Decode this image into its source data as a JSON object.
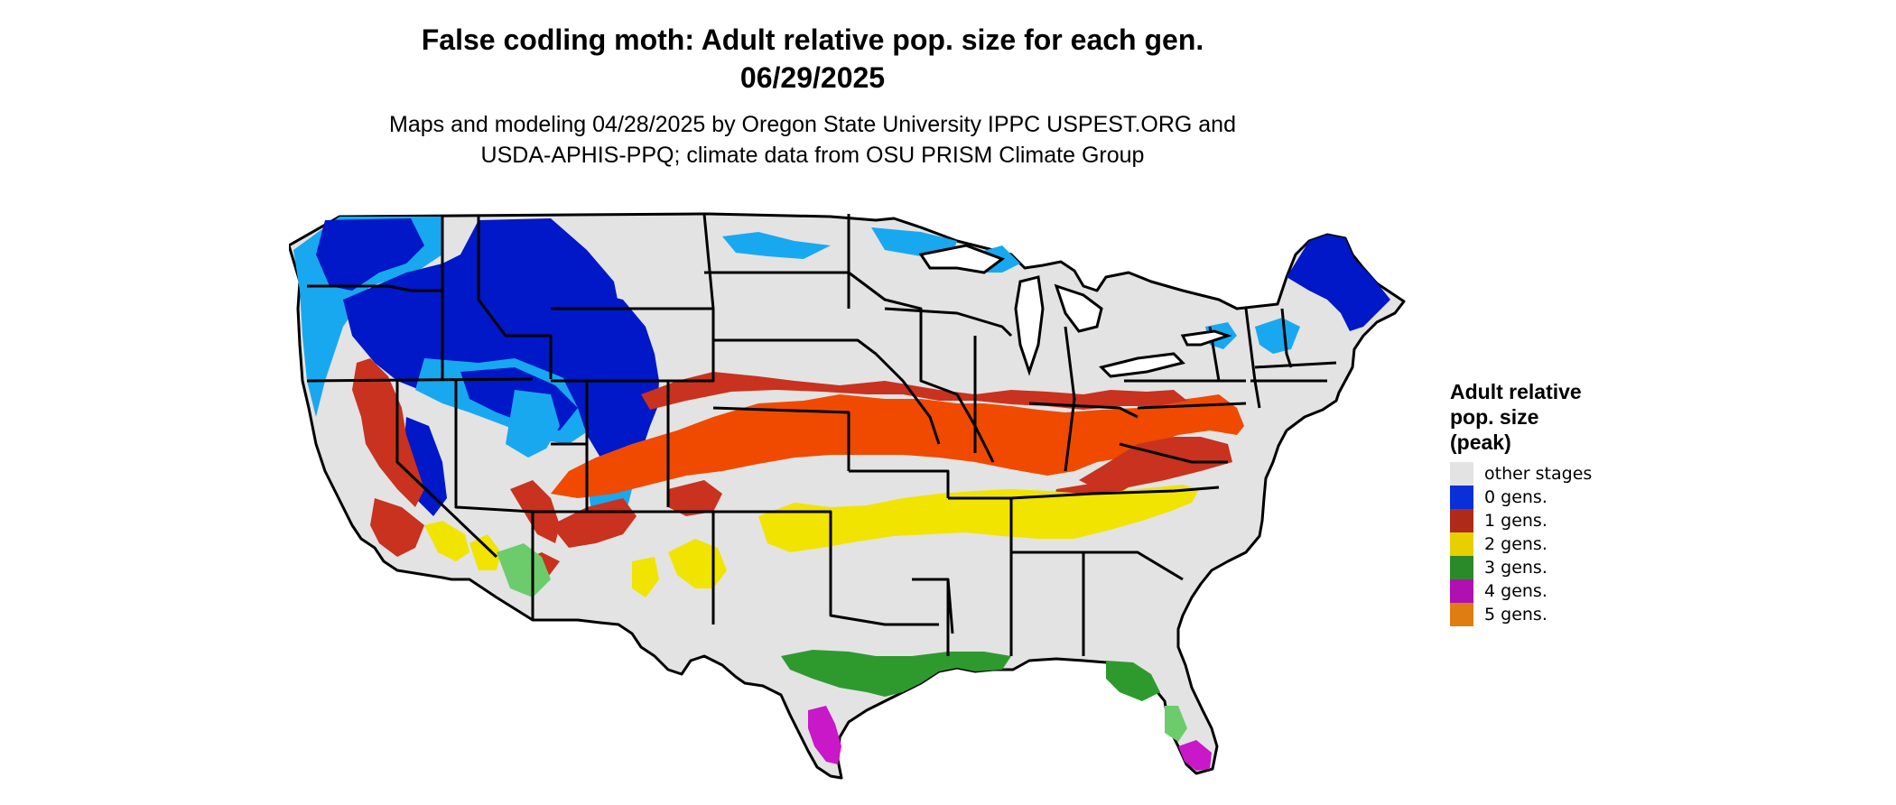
{
  "title_line1": "False codling moth: Adult relative pop. size for each gen.",
  "title_line2": "06/29/2025",
  "subtitle_line1": "Maps and modeling 04/28/2025 by Oregon State University IPPC USPEST.ORG and",
  "subtitle_line2": "USDA-APHIS-PPQ; climate data from OSU PRISM Climate Group",
  "legend": {
    "title_lines": [
      "Adult relative",
      "pop. size",
      "(peak)"
    ],
    "items": [
      {
        "label": "other stages",
        "color": "#e3e3e3"
      },
      {
        "label": "0 gens.",
        "color": "#0a2fd8"
      },
      {
        "label": "1 gens.",
        "color": "#b02a1a"
      },
      {
        "label": "2 gens.",
        "color": "#e8d000"
      },
      {
        "label": "3 gens.",
        "color": "#2a8a2a"
      },
      {
        "label": "4 gens.",
        "color": "#b010b0"
      },
      {
        "label": "5 gens.",
        "color": "#e07d10"
      }
    ]
  },
  "map_colors": {
    "background": "#e3e3e3",
    "zero_dark": "#0018c8",
    "zero_light": "#18a8f0",
    "one_red": "#c8321e",
    "one_orange": "#f04a00",
    "two": "#f0e400",
    "three": "#2e9a2e",
    "three_light": "#6ccc6c",
    "four": "#c818c8",
    "border": "#000000"
  }
}
